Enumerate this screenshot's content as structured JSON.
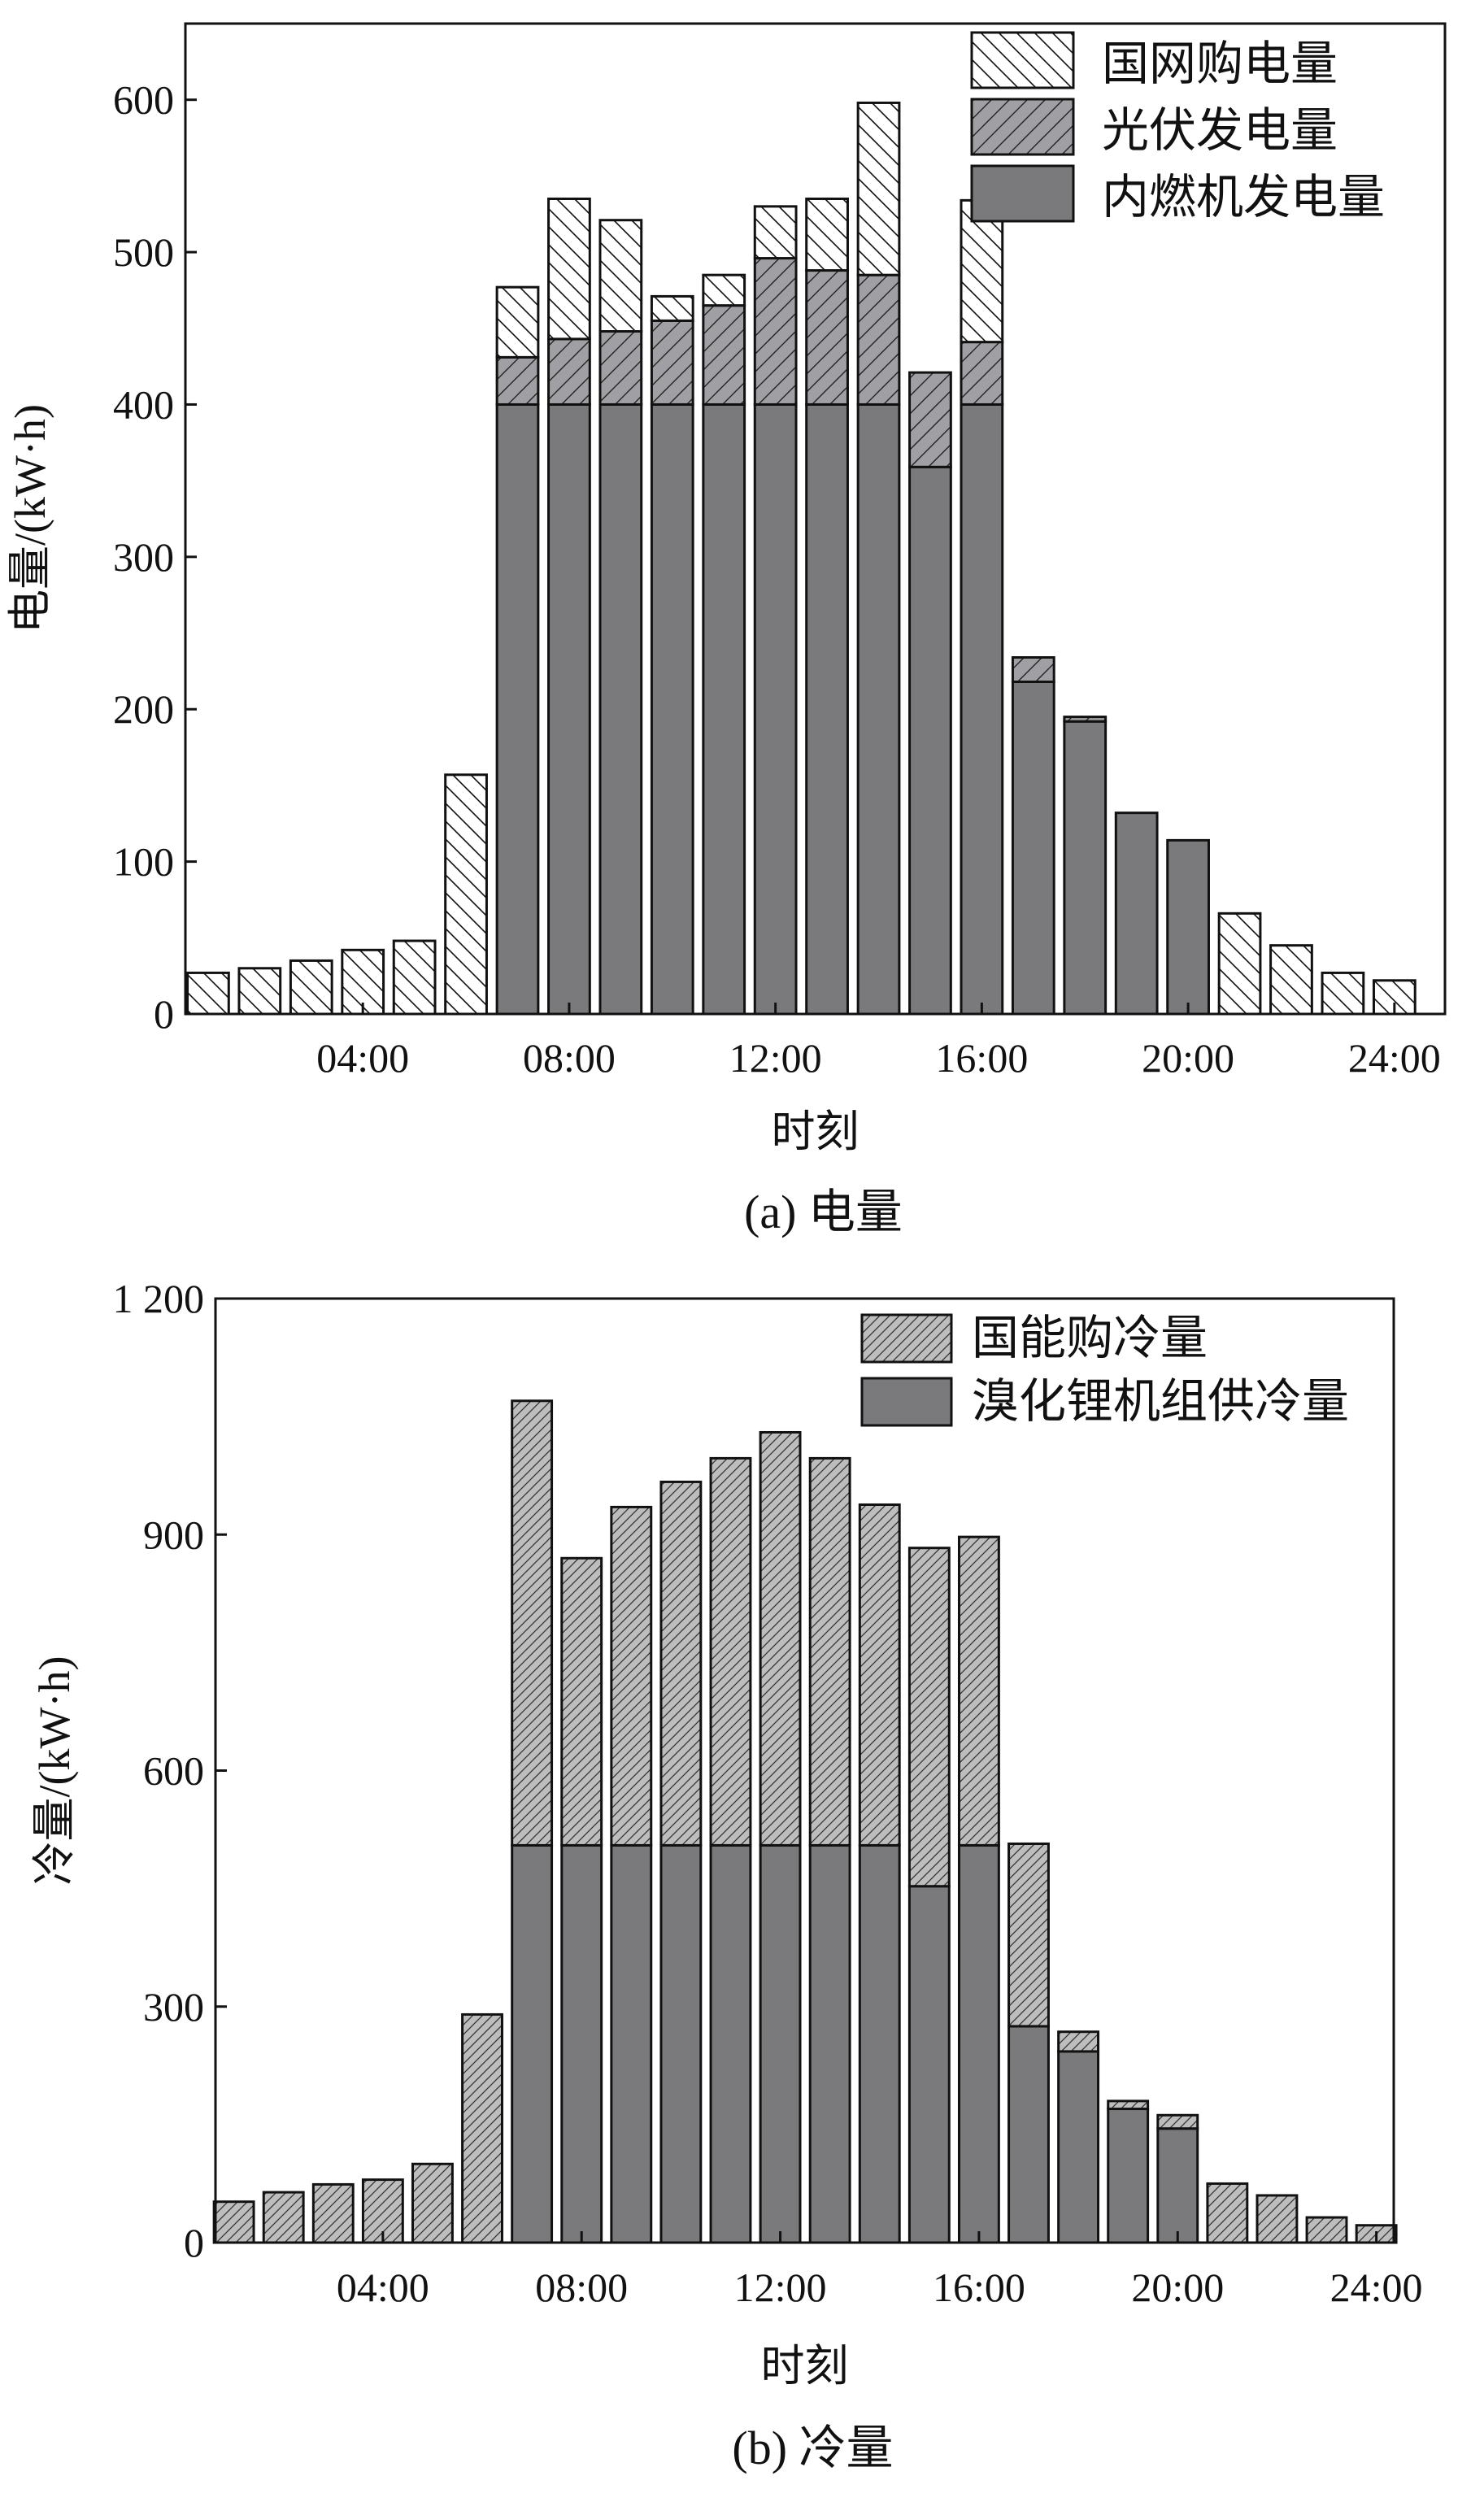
{
  "chart_data": [
    {
      "type": "bar",
      "stacked": true,
      "caption": "(a) 电量",
      "xlabel": "时刻",
      "ylabel": "电量/(kW·h)",
      "x": [
        1,
        2,
        3,
        4,
        5,
        6,
        7,
        8,
        9,
        10,
        11,
        12,
        13,
        14,
        15,
        16,
        17,
        18,
        19,
        20,
        21,
        22,
        23,
        24
      ],
      "xticks": [
        4,
        8,
        12,
        16,
        20,
        24
      ],
      "xtick_labels": [
        "04:00",
        "08:00",
        "12:00",
        "16:00",
        "20:00",
        "24:00"
      ],
      "xlim": [
        0.56,
        24.98
      ],
      "ylim": [
        0,
        650
      ],
      "yticks": [
        0,
        100,
        200,
        300,
        400,
        500,
        600
      ],
      "ytick_labels": [
        "0",
        "100",
        "200",
        "300",
        "400",
        "500",
        "600"
      ],
      "legend_position": "top-right",
      "series": [
        {
          "name": "内燃机发电量",
          "pattern": "solid",
          "color": "#7a7a7c",
          "values": [
            0,
            0,
            0,
            0,
            0,
            0,
            400,
            400,
            400,
            400,
            400,
            400,
            400,
            400,
            359,
            400,
            218,
            192,
            132,
            114,
            0,
            0,
            0,
            0
          ]
        },
        {
          "name": "光伏发电量",
          "pattern": "hatch-forward",
          "color": "#a0a0a4",
          "values": [
            0,
            0,
            0,
            0,
            0,
            0,
            31,
            43,
            48,
            55,
            65,
            96,
            88,
            85,
            62,
            41,
            16,
            3,
            0,
            0,
            0,
            0,
            0,
            0
          ]
        },
        {
          "name": "国网购电量",
          "pattern": "hatch-back",
          "color": "#ffffff",
          "values": [
            27,
            30,
            35,
            42,
            48,
            157,
            46,
            92,
            73,
            16,
            20,
            34,
            47,
            113,
            0,
            93,
            0,
            0,
            0,
            0,
            66,
            45,
            27,
            22
          ]
        }
      ],
      "legend_order": [
        "国网购电量",
        "光伏发电量",
        "内燃机发电量"
      ]
    },
    {
      "type": "bar",
      "stacked": true,
      "caption": "(b) 冷量",
      "xlabel": "时刻",
      "ylabel": "冷量/(kW·h)",
      "x": [
        1,
        2,
        3,
        4,
        5,
        6,
        7,
        8,
        9,
        10,
        11,
        12,
        13,
        14,
        15,
        16,
        17,
        18,
        19,
        20,
        21,
        22,
        23,
        24
      ],
      "xticks": [
        4,
        8,
        12,
        16,
        20,
        24
      ],
      "xtick_labels": [
        "04:00",
        "08:00",
        "12:00",
        "16:00",
        "20:00",
        "24:00"
      ],
      "xlim": [
        0.63,
        24.35
      ],
      "ylim": [
        0,
        1200
      ],
      "yticks": [
        0,
        300,
        600,
        900,
        1200
      ],
      "ytick_labels": [
        "0",
        "300",
        "600",
        "900",
        "1 200"
      ],
      "legend_position": "top-right",
      "series": [
        {
          "name": "溴化锂机组供冷量",
          "pattern": "solid",
          "color": "#7a7a7c",
          "values": [
            0,
            0,
            0,
            0,
            0,
            0,
            505,
            505,
            505,
            505,
            505,
            505,
            505,
            505,
            453,
            505,
            275,
            243,
            170,
            145,
            0,
            0,
            0,
            0
          ]
        },
        {
          "name": "国能购冷量",
          "pattern": "hatch-forward",
          "color": "#bdbdbd",
          "values": [
            52,
            64,
            74,
            80,
            100,
            290,
            565,
            365,
            430,
            462,
            492,
            525,
            492,
            433,
            430,
            392,
            232,
            25,
            10,
            17,
            75,
            60,
            32,
            22
          ]
        }
      ],
      "legend_order": [
        "国能购冷量",
        "溴化锂机组供冷量"
      ]
    }
  ]
}
